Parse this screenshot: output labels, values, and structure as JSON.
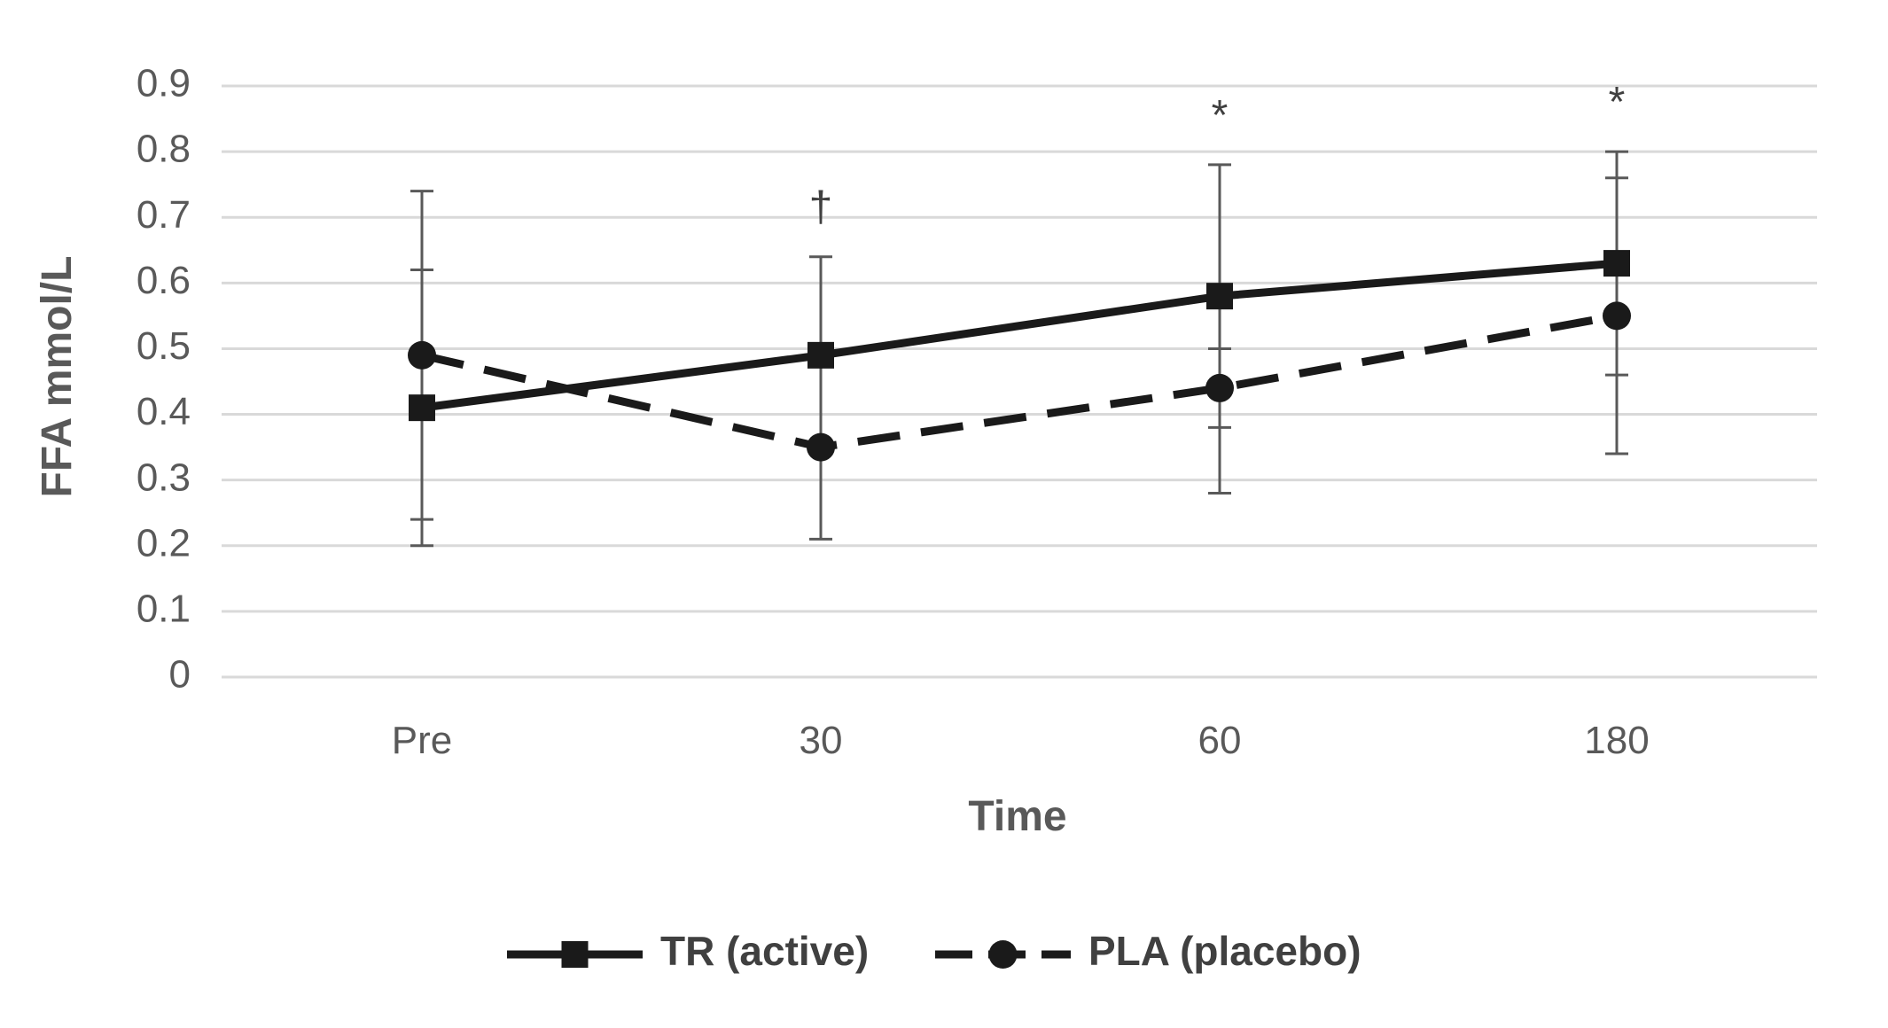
{
  "chart_data": {
    "type": "line",
    "title": "",
    "xlabel": "Time",
    "ylabel": "FFA mmol/L",
    "categories": [
      "Pre",
      "30",
      "60",
      "180"
    ],
    "y_ticks": [
      "0",
      "0.1",
      "0.2",
      "0.3",
      "0.4",
      "0.5",
      "0.6",
      "0.7",
      "0.8",
      "0.9"
    ],
    "ylim": [
      0,
      0.9
    ],
    "grid": "horizontal",
    "legend_position": "bottom",
    "series": [
      {
        "name": "TR (active)",
        "values": [
          0.41,
          0.49,
          0.58,
          0.63
        ],
        "err_upper": [
          0.62,
          0.64,
          0.78,
          0.76
        ],
        "err_lower": [
          0.2,
          0.35,
          0.38,
          0.46
        ],
        "marker": "square",
        "line_style": "solid",
        "color": "#1a1a1a"
      },
      {
        "name": "PLA (placebo)",
        "values": [
          0.49,
          0.35,
          0.44,
          0.55
        ],
        "err_upper": [
          0.74,
          0.49,
          0.5,
          0.8
        ],
        "err_lower": [
          0.24,
          0.21,
          0.28,
          0.34
        ],
        "marker": "circle",
        "line_style": "dashed",
        "color": "#1a1a1a"
      }
    ],
    "annotations": [
      {
        "category": "30",
        "text": "†"
      },
      {
        "category": "60",
        "text": "*"
      },
      {
        "category": "180",
        "text": "*"
      }
    ],
    "colors": {
      "grid": "#d9d9d9",
      "axis_text": "#595959",
      "error_bar": "#595959"
    }
  }
}
